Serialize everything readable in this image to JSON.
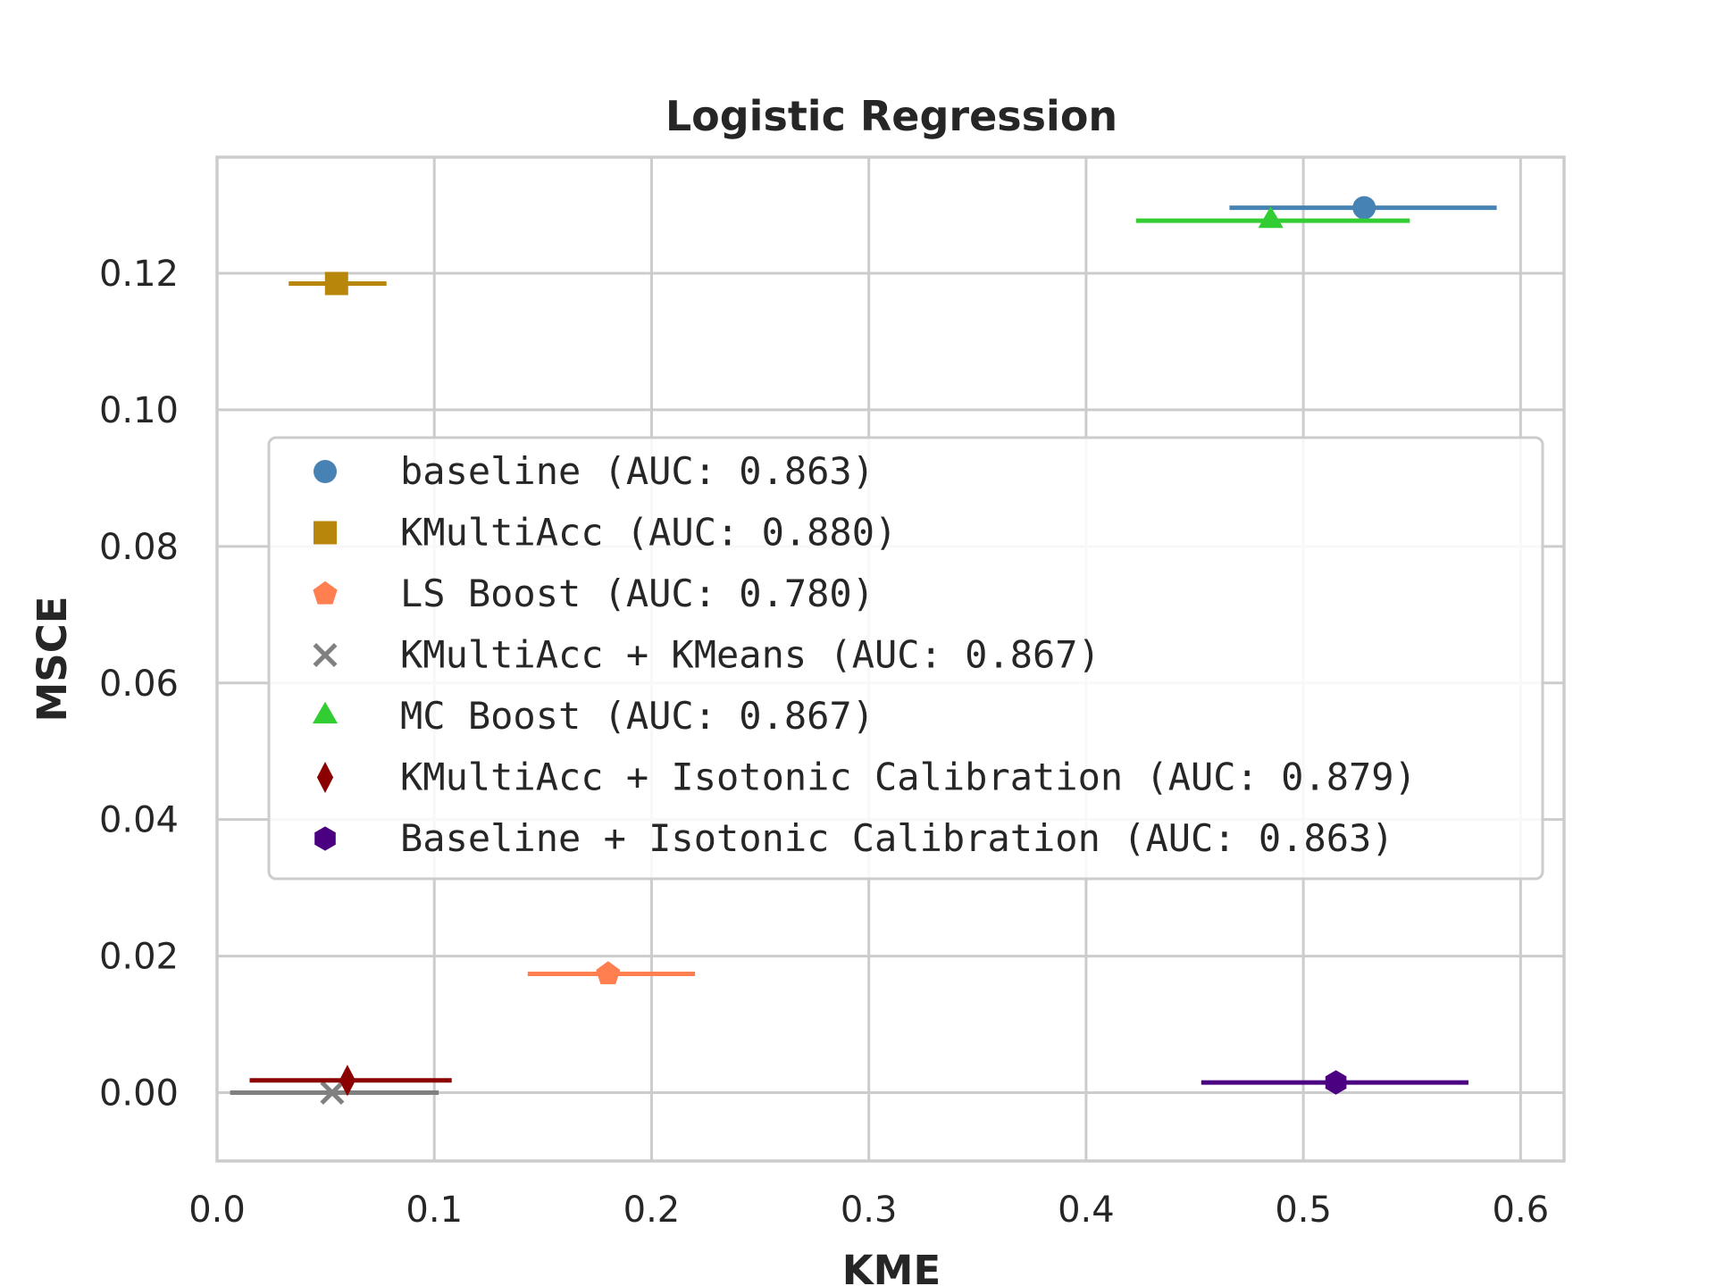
{
  "chart_data": {
    "type": "scatter",
    "title": "Logistic Regression",
    "xlabel": "KME",
    "ylabel": "MSCE",
    "xlim": [
      0.0,
      0.62
    ],
    "ylim": [
      -0.01,
      0.137
    ],
    "xticks": [
      0.0,
      0.1,
      0.2,
      0.3,
      0.4,
      0.5,
      0.6
    ],
    "xtick_labels": [
      "0.0",
      "0.1",
      "0.2",
      "0.3",
      "0.4",
      "0.5",
      "0.6"
    ],
    "yticks": [
      0.0,
      0.02,
      0.04,
      0.06,
      0.08,
      0.1,
      0.12
    ],
    "ytick_labels": [
      "0.00",
      "0.02",
      "0.04",
      "0.06",
      "0.08",
      "0.10",
      "0.12"
    ],
    "grid": true,
    "legend_position": "center-right",
    "series": [
      {
        "name": "baseline (AUC: 0.863)",
        "marker": "circle",
        "color": "#4682b4",
        "x": 0.528,
        "y": 0.1296,
        "xerr": [
          0.466,
          0.589
        ]
      },
      {
        "name": "KMultiAcc (AUC: 0.880)",
        "marker": "square",
        "color": "#b8860b",
        "x": 0.055,
        "y": 0.1185,
        "xerr": [
          0.033,
          0.078
        ]
      },
      {
        "name": "LS Boost (AUC: 0.780)",
        "marker": "pentagon",
        "color": "#ff7f50",
        "x": 0.18,
        "y": 0.0174,
        "xerr": [
          0.143,
          0.22
        ]
      },
      {
        "name": "KMultiAcc + KMeans (AUC: 0.867)",
        "marker": "x",
        "color": "#808080",
        "x": 0.053,
        "y": 0.0,
        "xerr": [
          0.006,
          0.102
        ]
      },
      {
        "name": "MC Boost (AUC: 0.867)",
        "marker": "triangle",
        "color": "#32cd32",
        "x": 0.485,
        "y": 0.1277,
        "xerr": [
          0.423,
          0.549
        ]
      },
      {
        "name": "KMultiAcc + Isotonic Calibration (AUC: 0.879)",
        "marker": "diamond",
        "color": "#8b0000",
        "x": 0.06,
        "y": 0.0018,
        "xerr": [
          0.015,
          0.108
        ]
      },
      {
        "name": "Baseline + Isotonic Calibration (AUC: 0.863)",
        "marker": "hexagon",
        "color": "#4b0082",
        "x": 0.515,
        "y": 0.0015,
        "xerr": [
          0.453,
          0.576
        ]
      }
    ]
  }
}
